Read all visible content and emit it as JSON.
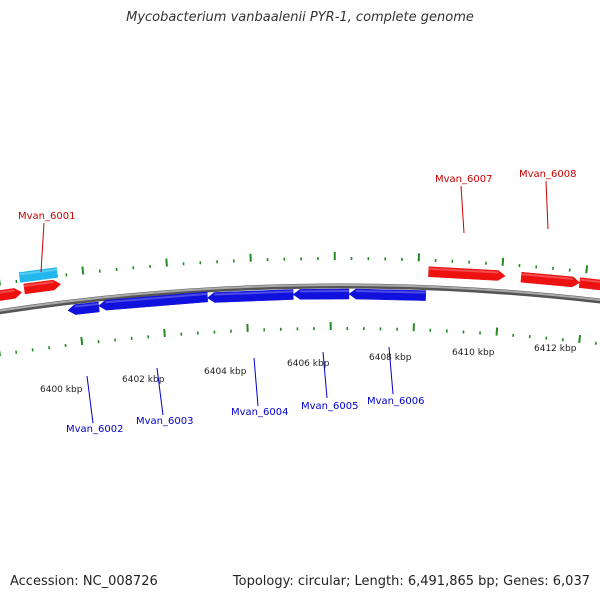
{
  "title": "Mycobacterium vanbaalenii PYR-1, complete genome",
  "footer": {
    "accession": "Accession: NC_008726",
    "summary": "Topology: circular; Length: 6,491,865 bp; Genes: 6,037"
  },
  "colors": {
    "forward_gene": "#ee1111",
    "reverse_gene": "#1111dd",
    "highlight_gene": "#22b8ee",
    "backbone": "#888888",
    "tick": "#228b22"
  },
  "scale": {
    "labels": [
      {
        "kbp": 6400,
        "text": "6400 kbp"
      },
      {
        "kbp": 6402,
        "text": "6402 kbp"
      },
      {
        "kbp": 6404,
        "text": "6404 kbp"
      },
      {
        "kbp": 6406,
        "text": "6406 kbp"
      },
      {
        "kbp": 6408,
        "text": "6408 kbp"
      },
      {
        "kbp": 6410,
        "text": "6410 kbp"
      },
      {
        "kbp": 6412,
        "text": "6412 kbp"
      }
    ]
  },
  "genes": {
    "labeled": [
      {
        "name": "Mvan_6001",
        "strand": "forward"
      },
      {
        "name": "Mvan_6002",
        "strand": "reverse"
      },
      {
        "name": "Mvan_6003",
        "strand": "reverse"
      },
      {
        "name": "Mvan_6004",
        "strand": "reverse"
      },
      {
        "name": "Mvan_6005",
        "strand": "reverse"
      },
      {
        "name": "Mvan_6006",
        "strand": "reverse"
      },
      {
        "name": "Mvan_6007",
        "strand": "forward"
      },
      {
        "name": "Mvan_6008",
        "strand": "forward"
      }
    ]
  }
}
